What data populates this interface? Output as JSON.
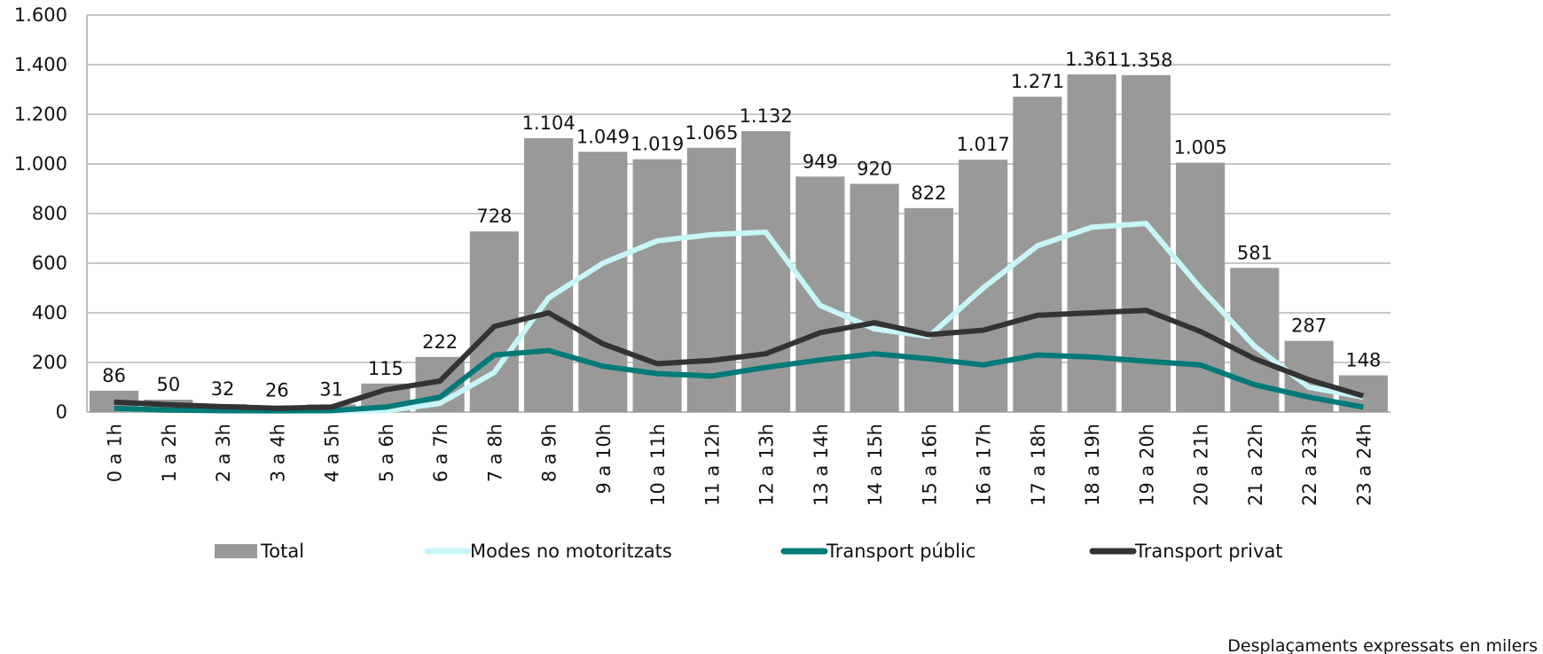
{
  "chart_data": {
    "type": "bar-line",
    "categories": [
      "0 a 1h",
      "1 a 2h",
      "2 a 3h",
      "3 a 4h",
      "4 a 5h",
      "5 a 6h",
      "6 a 7h",
      "7 a 8h",
      "8 a 9h",
      "9 a 10h",
      "10 a 11h",
      "11 a 12h",
      "12 a 13h",
      "13 a 14h",
      "14 a 15h",
      "15 a 16h",
      "16 a 17h",
      "17 a 18h",
      "18 a 19h",
      "19 a 20h",
      "20 a 21h",
      "21 a 22h",
      "22 a 23h",
      "23 a 24h"
    ],
    "series": [
      {
        "name": "Total",
        "color": "#999999",
        "kind": "bar",
        "values": [
          86,
          50,
          32,
          26,
          31,
          115,
          222,
          728,
          1104,
          1049,
          1019,
          1065,
          1132,
          949,
          920,
          822,
          1017,
          1271,
          1361,
          1358,
          1005,
          581,
          287,
          148
        ],
        "value_labels": [
          "86",
          "50",
          "32",
          "26",
          "31",
          "115",
          "222",
          "728",
          "1.104",
          "1.049",
          "1.019",
          "1.065",
          "1.132",
          "949",
          "920",
          "822",
          "1.017",
          "1.271",
          "1.361",
          "1.358",
          "1.005",
          "581",
          "287",
          "148"
        ]
      },
      {
        "name": "Modes no motoritzats",
        "color": "#c8f6f8",
        "kind": "line",
        "values": [
          15,
          8,
          5,
          4,
          5,
          5,
          35,
          160,
          460,
          600,
          690,
          715,
          725,
          430,
          335,
          305,
          500,
          670,
          745,
          760,
          500,
          265,
          100,
          60
        ]
      },
      {
        "name": "Transport públic",
        "color": "#007a78",
        "kind": "line",
        "values": [
          15,
          8,
          6,
          5,
          6,
          20,
          60,
          230,
          248,
          185,
          155,
          145,
          180,
          210,
          235,
          215,
          190,
          230,
          222,
          205,
          190,
          110,
          60,
          20
        ]
      },
      {
        "name": "Transport privat",
        "color": "#333333",
        "kind": "line",
        "values": [
          40,
          30,
          22,
          15,
          20,
          90,
          125,
          345,
          400,
          275,
          195,
          208,
          235,
          320,
          360,
          312,
          330,
          390,
          400,
          410,
          325,
          215,
          130,
          65
        ]
      }
    ],
    "ylim": [
      0,
      1600
    ],
    "yticks": [
      0,
      200,
      400,
      600,
      800,
      {
        "value": 1000,
        "label": "1.000"
      },
      {
        "value": 1200,
        "label": "1.200"
      },
      {
        "value": 1400,
        "label": "1.400"
      },
      {
        "value": 1600,
        "label": "1.600"
      }
    ],
    "grid": true,
    "legend": "bottom",
    "note": "Desplaçaments expressats en milers"
  }
}
